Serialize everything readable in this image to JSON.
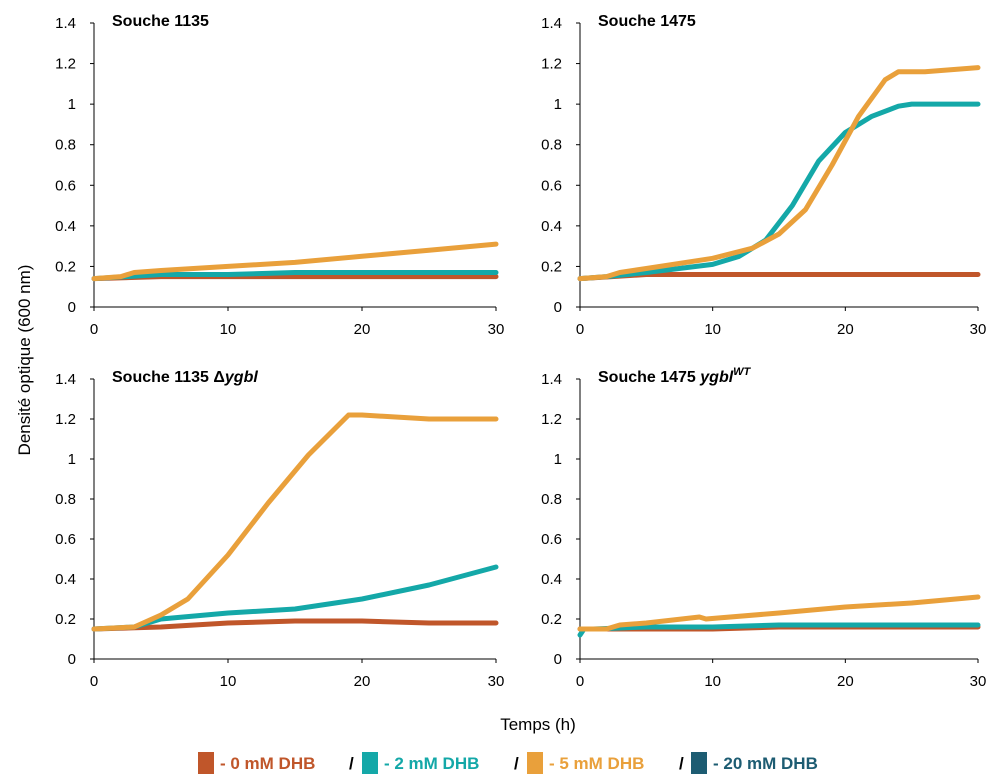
{
  "xlabel": "Temps (h)",
  "ylabel": "Densité optique (600 nm)",
  "x_ticks": [
    "0",
    "10",
    "20",
    "30"
  ],
  "y_ticks": [
    "0",
    "0.2",
    "0.4",
    "0.6",
    "0.8",
    "1",
    "1.2",
    "1.4"
  ],
  "legend": [
    {
      "label": "- 0 mM DHB",
      "color": "#c0562a"
    },
    {
      "label": "- 2 mM DHB",
      "color": "#14a8a8"
    },
    {
      "label": "- 5 mM DHB",
      "color": "#e9a03b"
    },
    {
      "label": "- 20 mM DHB",
      "color": "#1d5c72"
    }
  ],
  "legend_separator": "/",
  "chart_data": [
    {
      "type": "line",
      "title": "Souche 1135",
      "xlim": [
        0,
        30
      ],
      "ylim": [
        0,
        1.4
      ],
      "grid": false,
      "series": [
        {
          "name": "- 0 mM DHB",
          "color": "#c0562a",
          "x": [
            0,
            5,
            10,
            15,
            20,
            25,
            30
          ],
          "y": [
            0.14,
            0.15,
            0.15,
            0.15,
            0.15,
            0.15,
            0.15
          ]
        },
        {
          "name": "- 2 mM DHB",
          "color": "#14a8a8",
          "x": [
            0,
            5,
            10,
            15,
            20,
            25,
            30
          ],
          "y": [
            0.14,
            0.16,
            0.16,
            0.17,
            0.17,
            0.17,
            0.17
          ]
        },
        {
          "name": "- 5 mM DHB",
          "color": "#e9a03b",
          "x": [
            0,
            2,
            3,
            5,
            10,
            15,
            20,
            25,
            30
          ],
          "y": [
            0.14,
            0.15,
            0.17,
            0.18,
            0.2,
            0.22,
            0.25,
            0.28,
            0.31
          ]
        }
      ]
    },
    {
      "type": "line",
      "title": "Souche 1475",
      "xlim": [
        0,
        30
      ],
      "ylim": [
        0,
        1.4
      ],
      "grid": false,
      "series": [
        {
          "name": "- 0 mM DHB",
          "color": "#c0562a",
          "x": [
            0,
            5,
            10,
            15,
            20,
            25,
            30
          ],
          "y": [
            0.14,
            0.16,
            0.16,
            0.16,
            0.16,
            0.16,
            0.16
          ]
        },
        {
          "name": "- 2 mM DHB",
          "color": "#14a8a8",
          "x": [
            0,
            2,
            5,
            10,
            12,
            14,
            16,
            18,
            20,
            22,
            24,
            25,
            30
          ],
          "y": [
            0.14,
            0.15,
            0.17,
            0.21,
            0.25,
            0.33,
            0.5,
            0.72,
            0.86,
            0.94,
            0.99,
            1.0,
            1.0
          ]
        },
        {
          "name": "- 5 mM DHB",
          "color": "#e9a03b",
          "x": [
            0,
            2,
            3,
            5,
            10,
            13,
            15,
            17,
            19,
            21,
            23,
            24,
            26,
            30
          ],
          "y": [
            0.14,
            0.15,
            0.17,
            0.19,
            0.24,
            0.29,
            0.36,
            0.48,
            0.7,
            0.94,
            1.12,
            1.16,
            1.16,
            1.18
          ]
        }
      ]
    },
    {
      "type": "line",
      "title": "Souche 1135 Δygbl",
      "title_main": "Souche 1135 Δ",
      "title_italic": "ygbl",
      "xlim": [
        0,
        30
      ],
      "ylim": [
        0,
        1.4
      ],
      "grid": false,
      "series": [
        {
          "name": "- 0 mM DHB",
          "color": "#c0562a",
          "x": [
            0,
            5,
            10,
            15,
            20,
            25,
            30
          ],
          "y": [
            0.15,
            0.16,
            0.18,
            0.19,
            0.19,
            0.18,
            0.18
          ]
        },
        {
          "name": "- 2 mM DHB",
          "color": "#14a8a8",
          "x": [
            0,
            3,
            5,
            10,
            15,
            20,
            25,
            30
          ],
          "y": [
            0.15,
            0.16,
            0.2,
            0.23,
            0.25,
            0.3,
            0.37,
            0.46
          ]
        },
        {
          "name": "- 5 mM DHB",
          "color": "#e9a03b",
          "x": [
            0,
            3,
            5,
            7,
            10,
            13,
            16,
            19,
            20,
            25,
            30
          ],
          "y": [
            0.15,
            0.16,
            0.22,
            0.3,
            0.52,
            0.78,
            1.02,
            1.22,
            1.22,
            1.2,
            1.2
          ]
        }
      ]
    },
    {
      "type": "line",
      "title": "Souche 1475 yglbWT",
      "title_italic": "ygbl",
      "title_sup": "WT",
      "title_prefix": "Souche 1475 ",
      "xlim": [
        0,
        30
      ],
      "ylim": [
        0,
        1.4
      ],
      "grid": false,
      "series": [
        {
          "name": "- 0 mM DHB",
          "color": "#c0562a",
          "x": [
            0,
            5,
            10,
            15,
            20,
            25,
            30
          ],
          "y": [
            0.15,
            0.15,
            0.15,
            0.16,
            0.16,
            0.16,
            0.16
          ]
        },
        {
          "name": "- 2 mM DHB",
          "color": "#14a8a8",
          "x": [
            0,
            0.3,
            1,
            5,
            10,
            15,
            20,
            25,
            30
          ],
          "y": [
            0.12,
            0.15,
            0.15,
            0.16,
            0.16,
            0.17,
            0.17,
            0.17,
            0.17
          ]
        },
        {
          "name": "- 5 mM DHB",
          "color": "#e9a03b",
          "x": [
            0,
            2,
            3,
            5,
            9,
            9.5,
            15,
            20,
            25,
            30
          ],
          "y": [
            0.15,
            0.15,
            0.17,
            0.18,
            0.21,
            0.2,
            0.23,
            0.26,
            0.28,
            0.31
          ]
        }
      ]
    }
  ]
}
